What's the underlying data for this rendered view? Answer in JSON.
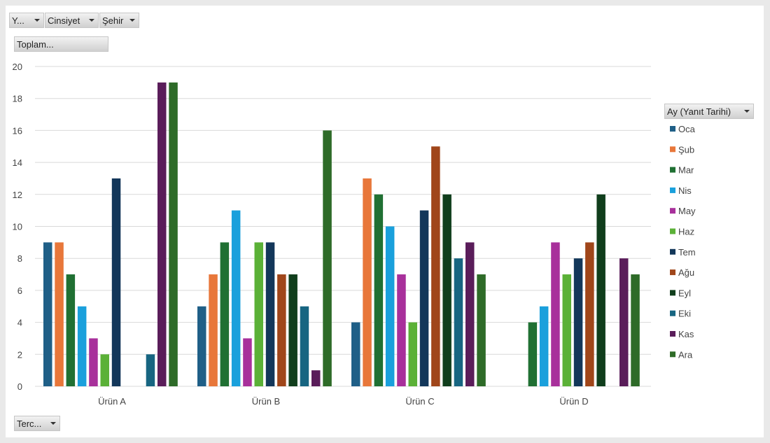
{
  "filters": {
    "year": "Y...",
    "gender": "Cinsiyet",
    "city": "Şehir"
  },
  "values_field": "Toplam...",
  "row_field": "Terc...",
  "legend_field": "Ay (Yanıt Tarihi)",
  "chart_data": {
    "type": "bar",
    "categories": [
      "Ürün A",
      "Ürün B",
      "Ürün C",
      "Ürün D"
    ],
    "ylim": [
      0,
      20
    ],
    "yticks": [
      0,
      2,
      4,
      6,
      8,
      10,
      12,
      14,
      16,
      18,
      20
    ],
    "grid": true,
    "legend_position": "right",
    "series": [
      {
        "name": "Oca",
        "color": "#1f5f87",
        "values": [
          9,
          5,
          4,
          null
        ]
      },
      {
        "name": "Şub",
        "color": "#e8773a",
        "values": [
          9,
          7,
          13,
          null
        ]
      },
      {
        "name": "Mar",
        "color": "#207033",
        "values": [
          7,
          9,
          12,
          4
        ]
      },
      {
        "name": "Nis",
        "color": "#1aa0dc",
        "values": [
          5,
          11,
          10,
          5
        ]
      },
      {
        "name": "May",
        "color": "#a8309b",
        "values": [
          3,
          3,
          7,
          9
        ]
      },
      {
        "name": "Haz",
        "color": "#5bb137",
        "values": [
          2,
          9,
          4,
          7
        ]
      },
      {
        "name": "Tem",
        "color": "#13375a",
        "values": [
          13,
          9,
          11,
          8
        ]
      },
      {
        "name": "Ağu",
        "color": "#a0461a",
        "values": [
          null,
          7,
          15,
          9
        ]
      },
      {
        "name": "Eyl",
        "color": "#103e1c",
        "values": [
          null,
          7,
          12,
          12
        ]
      },
      {
        "name": "Eki",
        "color": "#176581",
        "values": [
          2,
          5,
          8,
          null
        ]
      },
      {
        "name": "Kas",
        "color": "#5a1d5a",
        "values": [
          19,
          1,
          9,
          8
        ]
      },
      {
        "name": "Ara",
        "color": "#2e6b28",
        "values": [
          19,
          16,
          7,
          7
        ]
      }
    ]
  }
}
